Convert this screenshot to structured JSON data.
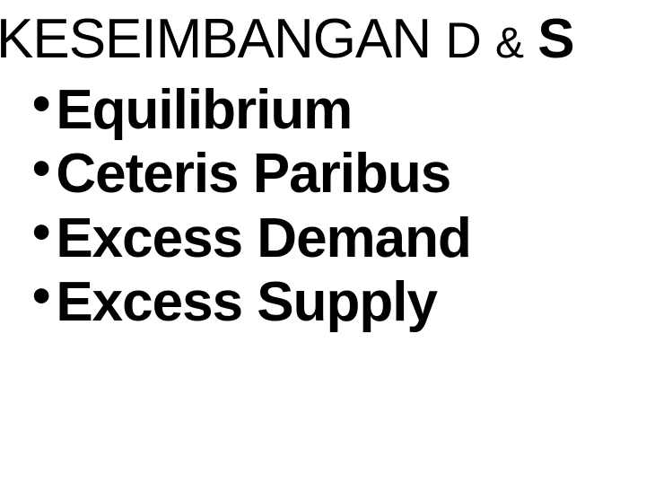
{
  "title": {
    "main": "KESEIMBANGAN",
    "d": "D",
    "amp": "&",
    "s": "S"
  },
  "bullets": [
    "Equilibrium",
    "Ceteris Paribus",
    "Excess Demand",
    "Excess Supply"
  ],
  "style": {
    "background_color": "#ffffff",
    "text_color": "#000000",
    "title_fontsize": 62,
    "bullet_fontsize": 62,
    "bullet_font_family": "Arial Black",
    "bullet_marker": "•"
  }
}
